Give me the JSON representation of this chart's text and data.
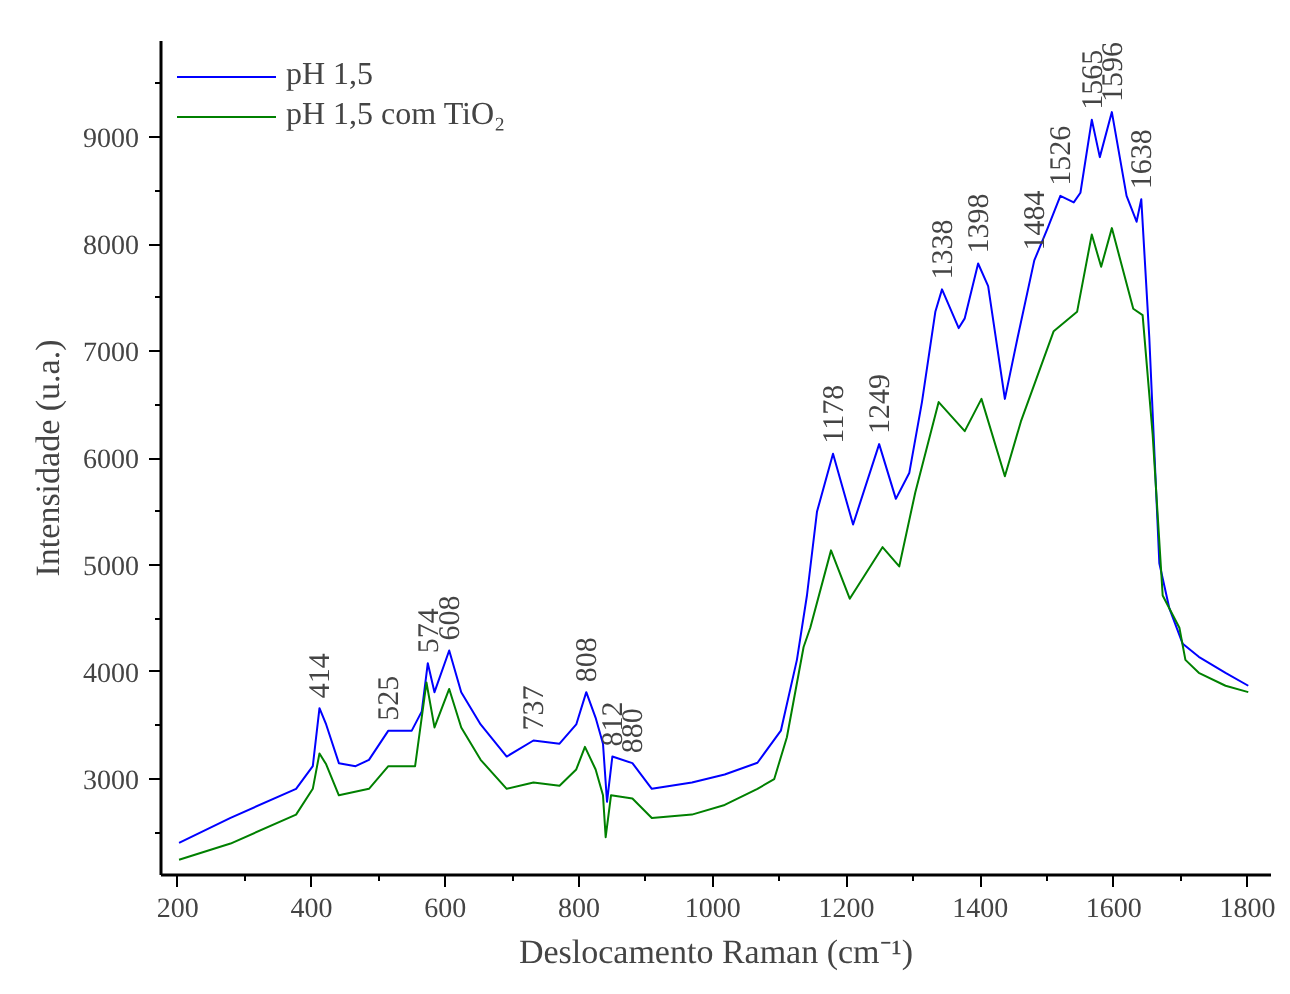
{
  "chart_data": {
    "type": "line",
    "xlabel": "Deslocamento Raman (cm⁻¹)",
    "ylabel": "Intensidade (u.a.)",
    "xlim": [
      175,
      1835
    ],
    "ylim": [
      2100,
      9900
    ],
    "xticks": [
      200,
      400,
      600,
      800,
      1000,
      1200,
      1400,
      1600,
      1800
    ],
    "yticks": [
      3000,
      4000,
      5000,
      6000,
      7000,
      8000,
      9000
    ],
    "grid": false,
    "legend": "top left",
    "line_style": "solid",
    "marker": "none",
    "series": [
      {
        "name": "pH 1,5",
        "color": "#0000ff",
        "x": [
          202,
          279,
          377,
          402,
          412,
          422,
          441,
          466,
          486,
          515,
          550,
          565,
          574,
          584,
          606,
          624,
          653,
          692,
          732,
          771,
          796,
          811,
          825,
          836,
          842,
          850,
          880,
          909,
          969,
          1018,
          1067,
          1102,
          1126,
          1141,
          1156,
          1180,
          1210,
          1249,
          1274,
          1294,
          1313,
          1333,
          1343,
          1368,
          1377,
          1397,
          1412,
          1437,
          1456,
          1481,
          1501,
          1520,
          1540,
          1550,
          1567,
          1579,
          1597,
          1619,
          1634,
          1641,
          1653,
          1668,
          1683,
          1703,
          1727,
          1767,
          1801
        ],
        "values": [
          2400,
          2635,
          2906,
          3118,
          3660,
          3508,
          3146,
          3118,
          3177,
          3450,
          3450,
          3630,
          4081,
          3810,
          4200,
          3810,
          3508,
          3208,
          3358,
          3328,
          3508,
          3810,
          3570,
          3328,
          2785,
          3208,
          3146,
          2906,
          2966,
          3040,
          3150,
          3450,
          4112,
          4714,
          5497,
          6040,
          5378,
          6130,
          5618,
          5859,
          6523,
          7367,
          7577,
          7215,
          7306,
          7819,
          7608,
          6553,
          7125,
          7848,
          8150,
          8452,
          8391,
          8481,
          9163,
          8814,
          9235,
          8452,
          8210,
          8421,
          7125,
          5016,
          4593,
          4262,
          4141,
          3991,
          3870
        ]
      },
      {
        "name": "pH 1,5 com TiO₂",
        "color": "#008000",
        "x": [
          202,
          279,
          377,
          402,
          412,
          422,
          441,
          486,
          515,
          555,
          572,
          584,
          606,
          624,
          653,
          692,
          732,
          771,
          796,
          809,
          825,
          836,
          840,
          848,
          880,
          909,
          969,
          1018,
          1067,
          1092,
          1111,
          1136,
          1146,
          1177,
          1205,
          1254,
          1279,
          1303,
          1338,
          1377,
          1402,
          1437,
          1461,
          1510,
          1545,
          1567,
          1581,
          1597,
          1629,
          1643,
          1658,
          1673,
          1698,
          1707,
          1727,
          1767,
          1801
        ],
        "values": [
          2242,
          2394,
          2665,
          2906,
          3237,
          3135,
          2845,
          2906,
          3118,
          3118,
          3900,
          3480,
          3840,
          3480,
          3177,
          2906,
          2966,
          2935,
          3087,
          3298,
          3087,
          2845,
          2454,
          2845,
          2815,
          2633,
          2665,
          2755,
          2906,
          2996,
          3388,
          4232,
          4412,
          5136,
          4684,
          5166,
          4986,
          5678,
          6523,
          6251,
          6553,
          5830,
          6342,
          7186,
          7367,
          8090,
          7788,
          8150,
          7396,
          7336,
          6221,
          4714,
          4412,
          4112,
          3991,
          3870,
          3810
        ]
      }
    ],
    "annotations": [
      {
        "text": "414",
        "x": 412,
        "y": 3660
      },
      {
        "text": "525",
        "x": 515,
        "y": 3450
      },
      {
        "text": "574",
        "x": 574,
        "y": 4081
      },
      {
        "text": "608",
        "x": 606,
        "y": 4200
      },
      {
        "text": "737",
        "x": 732,
        "y": 3358
      },
      {
        "text": "808",
        "x": 811,
        "y": 3810
      },
      {
        "text": "812",
        "x": 850,
        "y": 3208
      },
      {
        "text": "880",
        "x": 880,
        "y": 3146
      },
      {
        "text": "1178",
        "x": 1180,
        "y": 6040
      },
      {
        "text": "1249",
        "x": 1249,
        "y": 6130
      },
      {
        "text": "1338",
        "x": 1343,
        "y": 7577
      },
      {
        "text": "1398",
        "x": 1397,
        "y": 7819
      },
      {
        "text": "1484",
        "x": 1481,
        "y": 7848
      },
      {
        "text": "1526",
        "x": 1520,
        "y": 8452
      },
      {
        "text": "1565",
        "x": 1567,
        "y": 9163
      },
      {
        "text": "1596",
        "x": 1597,
        "y": 9235
      },
      {
        "text": "1638",
        "x": 1641,
        "y": 8421
      }
    ]
  }
}
